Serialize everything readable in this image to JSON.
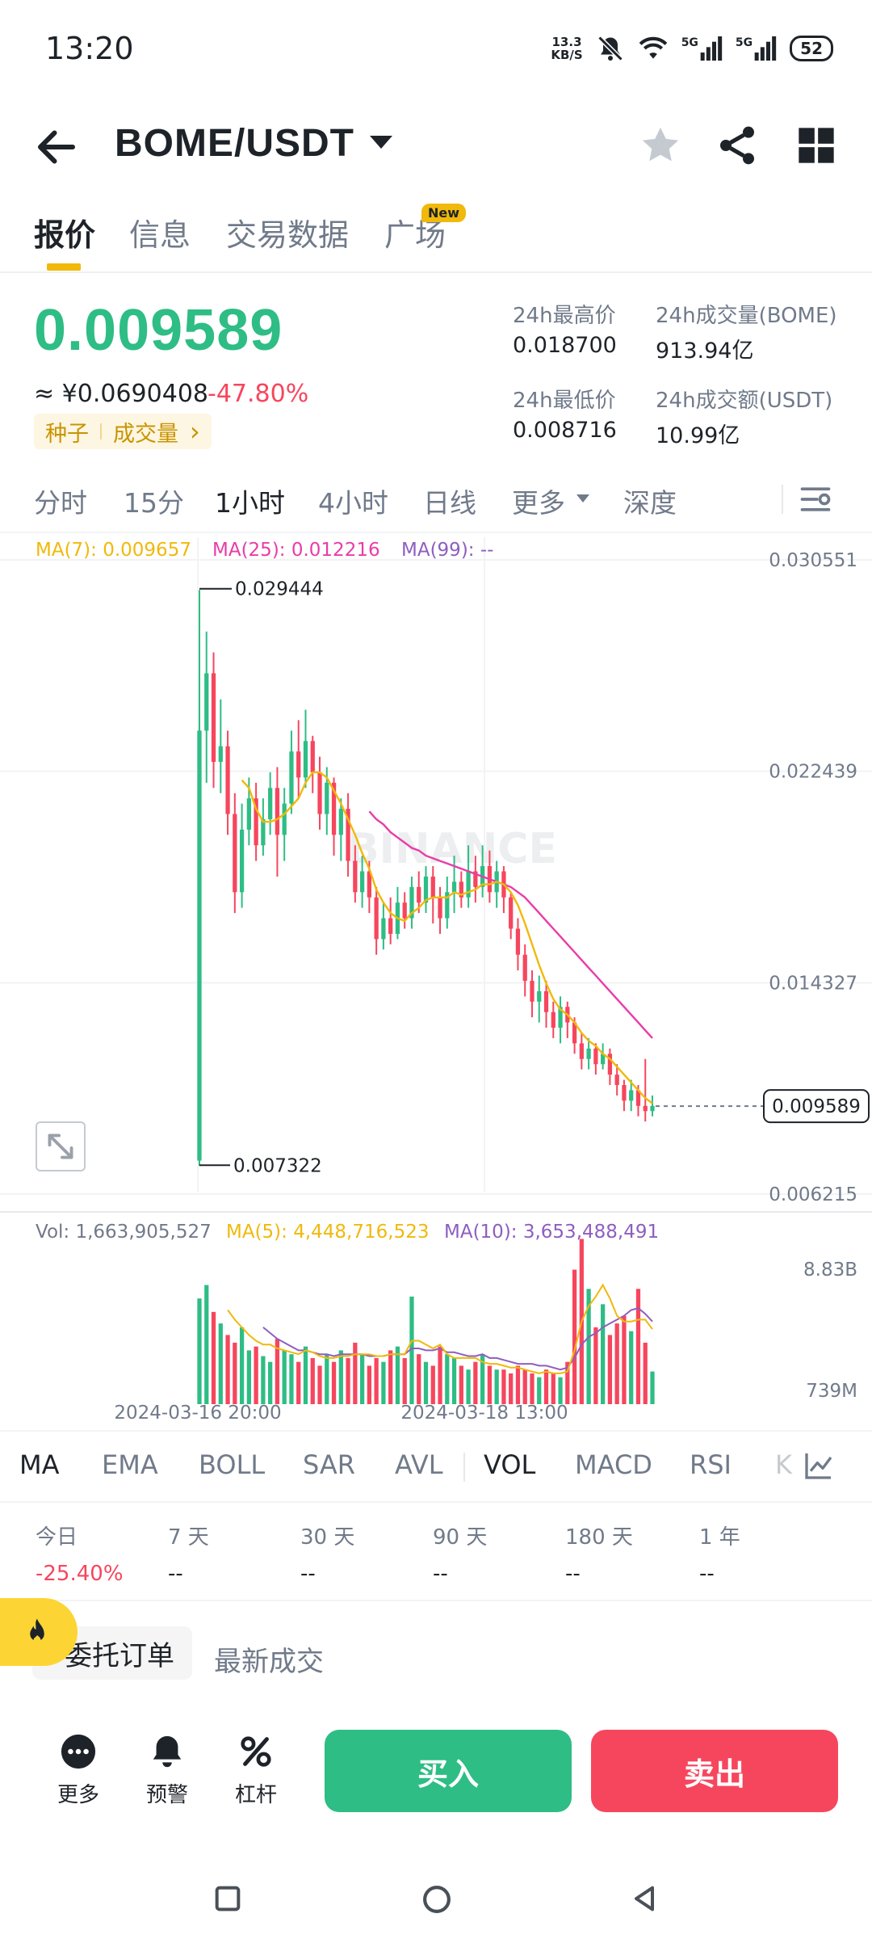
{
  "status_bar": {
    "time": "13:20",
    "net_speed_value": "13.3",
    "net_speed_unit": "KB/S",
    "signal_1_label": "5G",
    "signal_2_label": "5G",
    "battery": "52",
    "icons": [
      "mute-icon",
      "wifi-icon",
      "signal-icon",
      "signal-icon",
      "battery-icon"
    ]
  },
  "header": {
    "pair": "BOME/USDT",
    "icons": [
      "back-arrow-icon",
      "star-icon",
      "share-icon",
      "grid-icon"
    ]
  },
  "main_tabs": [
    {
      "label": "报价",
      "active": true
    },
    {
      "label": "信息",
      "active": false
    },
    {
      "label": "交易数据",
      "active": false
    },
    {
      "label": "广场",
      "active": false,
      "badge": "New"
    }
  ],
  "price": {
    "last": "0.009589",
    "cny": "≈ ¥0.0690408",
    "change": "-47.80%",
    "tag_1": "种子",
    "tag_2": "成交量",
    "tag_chevron": "›"
  },
  "stats": {
    "high_label": "24h最高价",
    "high_value": "0.018700",
    "low_label": "24h最低价",
    "low_value": "0.008716",
    "vol_base_label": "24h成交量(BOME)",
    "vol_base_value": "913.94亿",
    "vol_quote_label": "24h成交额(USDT)",
    "vol_quote_value": "10.99亿"
  },
  "interval_tabs": [
    {
      "label": "分时",
      "active": false
    },
    {
      "label": "15分",
      "active": false
    },
    {
      "label": "1小时",
      "active": true
    },
    {
      "label": "4小时",
      "active": false
    },
    {
      "label": "日线",
      "active": false
    },
    {
      "label": "更多",
      "active": false
    },
    {
      "label": "深度",
      "active": false
    }
  ],
  "chart_data": {
    "type": "candlestick",
    "ma_legend": {
      "ma7": "MA(7): 0.009657",
      "ma25": "MA(25): 0.012216",
      "ma99": "MA(99): --"
    },
    "colors": {
      "up": "#2ebd85",
      "down": "#f6465d",
      "ma7": "#f0b90b",
      "ma25": "#e93ca8",
      "ma99": "#8e5ec0"
    },
    "y_axis_labels": [
      "0.030551",
      "0.022439",
      "0.014327",
      "0.006215"
    ],
    "ylim": [
      0.006215,
      0.030551
    ],
    "high_marker": "0.029444",
    "low_marker": "0.007322",
    "current_price_label": "0.009589",
    "watermark": "BINANCE",
    "candles": [
      [
        0.0075,
        0.024,
        0.0294,
        0.0073
      ],
      [
        0.024,
        0.0262,
        0.0278,
        0.022
      ],
      [
        0.0262,
        0.0228,
        0.027,
        0.0218
      ],
      [
        0.0228,
        0.0234,
        0.0252,
        0.0216
      ],
      [
        0.0234,
        0.0208,
        0.024,
        0.02
      ],
      [
        0.0208,
        0.0178,
        0.0216,
        0.017
      ],
      [
        0.0178,
        0.0202,
        0.0212,
        0.0172
      ],
      [
        0.0202,
        0.0214,
        0.0222,
        0.0196
      ],
      [
        0.0214,
        0.0196,
        0.022,
        0.019
      ],
      [
        0.0196,
        0.0206,
        0.0214,
        0.0192
      ],
      [
        0.0206,
        0.0218,
        0.0224,
        0.02
      ],
      [
        0.0218,
        0.02,
        0.0226,
        0.0184
      ],
      [
        0.02,
        0.0212,
        0.0218,
        0.019
      ],
      [
        0.0212,
        0.0232,
        0.024,
        0.0208
      ],
      [
        0.0232,
        0.0222,
        0.0244,
        0.0214
      ],
      [
        0.0222,
        0.0236,
        0.0248,
        0.0218
      ],
      [
        0.0236,
        0.0224,
        0.0238,
        0.0216
      ],
      [
        0.0224,
        0.0208,
        0.023,
        0.0202
      ],
      [
        0.0208,
        0.022,
        0.0226,
        0.02
      ],
      [
        0.022,
        0.02,
        0.0222,
        0.0192
      ],
      [
        0.02,
        0.021,
        0.0214,
        0.019
      ],
      [
        0.021,
        0.019,
        0.0216,
        0.0184
      ],
      [
        0.019,
        0.0178,
        0.0196,
        0.0174
      ],
      [
        0.0178,
        0.0186,
        0.0192,
        0.0172
      ],
      [
        0.0186,
        0.0176,
        0.019,
        0.017
      ],
      [
        0.0176,
        0.016,
        0.018,
        0.0154
      ],
      [
        0.016,
        0.0168,
        0.0174,
        0.0156
      ],
      [
        0.0168,
        0.0162,
        0.0176,
        0.0158
      ],
      [
        0.0162,
        0.0174,
        0.018,
        0.016
      ],
      [
        0.0174,
        0.0168,
        0.0178,
        0.0164
      ],
      [
        0.0168,
        0.018,
        0.0184,
        0.0164
      ],
      [
        0.018,
        0.0174,
        0.0186,
        0.017
      ],
      [
        0.0174,
        0.0184,
        0.0188,
        0.017
      ],
      [
        0.0184,
        0.0176,
        0.0188,
        0.0166
      ],
      [
        0.0176,
        0.0168,
        0.018,
        0.0162
      ],
      [
        0.0168,
        0.0178,
        0.0184,
        0.0164
      ],
      [
        0.0178,
        0.0182,
        0.0192,
        0.017
      ],
      [
        0.0182,
        0.0176,
        0.0186,
        0.0172
      ],
      [
        0.0176,
        0.0186,
        0.0196,
        0.0172
      ],
      [
        0.0186,
        0.018,
        0.0192,
        0.0174
      ],
      [
        0.018,
        0.0188,
        0.0196,
        0.0176
      ],
      [
        0.0188,
        0.0178,
        0.0194,
        0.0174
      ],
      [
        0.0178,
        0.0186,
        0.019,
        0.0172
      ],
      [
        0.0186,
        0.0176,
        0.0188,
        0.017
      ],
      [
        0.0176,
        0.0164,
        0.0178,
        0.016
      ],
      [
        0.0164,
        0.0154,
        0.0168,
        0.0148
      ],
      [
        0.0154,
        0.0144,
        0.0158,
        0.0138
      ],
      [
        0.0144,
        0.0136,
        0.0148,
        0.013
      ],
      [
        0.0136,
        0.014,
        0.0146,
        0.0128
      ],
      [
        0.014,
        0.0132,
        0.0144,
        0.0126
      ],
      [
        0.0132,
        0.0126,
        0.0136,
        0.0122
      ],
      [
        0.0126,
        0.0134,
        0.0138,
        0.012
      ],
      [
        0.0134,
        0.0128,
        0.0136,
        0.0122
      ],
      [
        0.0128,
        0.012,
        0.013,
        0.0116
      ],
      [
        0.012,
        0.0114,
        0.0124,
        0.011
      ],
      [
        0.0114,
        0.0118,
        0.0122,
        0.011
      ],
      [
        0.0118,
        0.0112,
        0.012,
        0.0108
      ],
      [
        0.0112,
        0.0116,
        0.012,
        0.011
      ],
      [
        0.0116,
        0.0108,
        0.0118,
        0.0104
      ],
      [
        0.0108,
        0.0104,
        0.0112,
        0.01
      ],
      [
        0.0104,
        0.0098,
        0.0106,
        0.0094
      ],
      [
        0.0098,
        0.0102,
        0.0106,
        0.0094
      ],
      [
        0.0102,
        0.0096,
        0.0104,
        0.0092
      ],
      [
        0.0096,
        0.0094,
        0.0114,
        0.009
      ],
      [
        0.0094,
        0.0096,
        0.01,
        0.0092
      ]
    ],
    "ma7_values": [
      null,
      null,
      null,
      null,
      null,
      null,
      0.0221,
      0.0218,
      0.021,
      0.0205,
      0.0205,
      0.0206,
      0.0208,
      0.0211,
      0.0214,
      0.022,
      0.0224,
      0.0224,
      0.0222,
      0.0217,
      0.0212,
      0.0206,
      0.02,
      0.0193,
      0.0187,
      0.0179,
      0.0174,
      0.017,
      0.0168,
      0.0167,
      0.017,
      0.0172,
      0.0175,
      0.0176,
      0.0176,
      0.0176,
      0.0178,
      0.0177,
      0.0178,
      0.0179,
      0.0181,
      0.0181,
      0.0182,
      0.0181,
      0.0178,
      0.0173,
      0.0166,
      0.0158,
      0.015,
      0.0143,
      0.0137,
      0.0133,
      0.0131,
      0.0128,
      0.0124,
      0.0121,
      0.0119,
      0.0116,
      0.0114,
      0.0111,
      0.0108,
      0.0105,
      0.0102,
      0.0099,
      0.0097
    ],
    "ma25_values": [
      null,
      null,
      null,
      null,
      null,
      null,
      null,
      null,
      null,
      null,
      null,
      null,
      null,
      null,
      null,
      null,
      null,
      null,
      null,
      null,
      null,
      null,
      null,
      null,
      0.0209,
      0.0206,
      0.0204,
      0.0201,
      0.0199,
      0.0197,
      0.0195,
      0.0194,
      0.0192,
      0.0191,
      0.019,
      0.0189,
      0.0188,
      0.0187,
      0.0186,
      0.0185,
      0.0184,
      0.0183,
      0.0182,
      0.0181,
      0.018,
      0.0178,
      0.0176,
      0.0173,
      0.017,
      0.0167,
      0.0164,
      0.0161,
      0.0158,
      0.0155,
      0.0152,
      0.0149,
      0.0146,
      0.0143,
      0.014,
      0.0137,
      0.0134,
      0.0131,
      0.0128,
      0.0125,
      0.0122
    ],
    "vol_legend": {
      "vol": "Vol: 1,663,905,527",
      "ma5": "MA(5): 4,448,716,523",
      "ma10": "MA(10): 3,653,488,491"
    },
    "vol_axis_top": "8.83B",
    "vol_axis_bottom": "739M",
    "vol_ylim": [
      0,
      8.83
    ],
    "volumes_b": [
      5.5,
      6.2,
      4.8,
      4.2,
      3.6,
      3.2,
      4.0,
      2.8,
      3.0,
      2.5,
      2.2,
      3.4,
      2.8,
      2.6,
      2.2,
      3.0,
      2.4,
      2.0,
      2.6,
      2.2,
      2.8,
      2.4,
      3.2,
      2.6,
      2.0,
      2.4,
      2.2,
      2.8,
      3.0,
      2.4,
      5.6,
      2.6,
      2.2,
      2.0,
      3.0,
      2.6,
      2.4,
      2.0,
      1.8,
      2.2,
      2.6,
      2.0,
      1.8,
      1.8,
      1.6,
      2.0,
      1.8,
      1.6,
      1.4,
      1.8,
      1.6,
      1.4,
      2.2,
      7.0,
      8.6,
      6.0,
      4.0,
      5.2,
      3.6,
      4.2,
      4.6,
      3.8,
      6.0,
      3.2,
      1.7
    ],
    "vol_ma5": [
      null,
      null,
      null,
      null,
      4.9,
      4.4,
      4.0,
      3.6,
      3.3,
      3.1,
      3.1,
      2.9,
      2.8,
      2.7,
      2.6,
      2.8,
      2.7,
      2.5,
      2.4,
      2.4,
      2.5,
      2.5,
      2.6,
      2.6,
      2.6,
      2.5,
      2.5,
      2.6,
      2.6,
      2.6,
      3.3,
      3.3,
      3.1,
      2.9,
      3.1,
      2.6,
      2.4,
      2.4,
      2.4,
      2.4,
      2.2,
      2.1,
      2.1,
      2.0,
      1.9,
      1.9,
      1.8,
      1.7,
      1.6,
      1.7,
      1.6,
      1.6,
      1.7,
      2.8,
      4.3,
      5.1,
      5.6,
      6.2,
      5.5,
      4.6,
      4.3,
      4.3,
      4.4,
      4.4,
      3.9
    ],
    "vol_ma10": [
      null,
      null,
      null,
      null,
      null,
      null,
      null,
      null,
      null,
      4.0,
      3.7,
      3.4,
      3.2,
      3.0,
      2.8,
      2.8,
      2.7,
      2.6,
      2.6,
      2.5,
      2.6,
      2.6,
      2.6,
      2.6,
      2.5,
      2.5,
      2.5,
      2.6,
      2.6,
      2.6,
      2.9,
      2.9,
      2.8,
      2.8,
      2.9,
      2.7,
      2.7,
      2.6,
      2.5,
      2.5,
      2.6,
      2.4,
      2.4,
      2.3,
      2.2,
      2.1,
      2.1,
      2.1,
      2.0,
      2.0,
      1.9,
      1.8,
      1.9,
      2.4,
      3.1,
      3.5,
      3.7,
      4.0,
      4.2,
      4.4,
      4.6,
      4.9,
      5.0,
      4.7,
      4.3
    ],
    "x_labels": [
      "2024-03-16 20:00",
      "2024-03-18 13:00"
    ]
  },
  "indicator_tabs": [
    {
      "label": "MA",
      "active": true
    },
    {
      "label": "EMA",
      "active": false
    },
    {
      "label": "BOLL",
      "active": false
    },
    {
      "label": "SAR",
      "active": false
    },
    {
      "label": "AVL",
      "active": false
    },
    {
      "label": "VOL",
      "active": true
    },
    {
      "label": "MACD",
      "active": false
    },
    {
      "label": "RSI",
      "active": false
    },
    {
      "label": "K",
      "active": false
    }
  ],
  "performance": [
    {
      "label": "今日",
      "value": "-25.40%"
    },
    {
      "label": "7 天",
      "value": "--"
    },
    {
      "label": "30 天",
      "value": "--"
    },
    {
      "label": "90 天",
      "value": "--"
    },
    {
      "label": "180 天",
      "value": "--"
    },
    {
      "label": "1 年",
      "value": "--"
    }
  ],
  "order_tabs": {
    "open_orders": "委托订单",
    "latest_trades": "最新成交"
  },
  "actions": {
    "more": "更多",
    "alert": "预警",
    "leverage": "杠杆",
    "buy": "买入",
    "sell": "卖出"
  }
}
